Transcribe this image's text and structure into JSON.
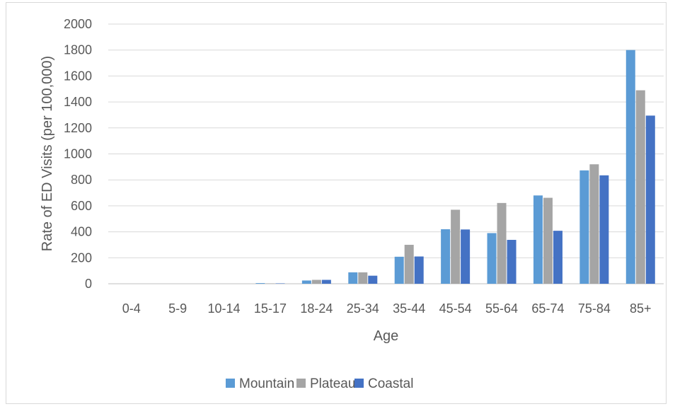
{
  "chart_data": {
    "type": "bar",
    "title": "",
    "xlabel": "Age",
    "ylabel": "Rate of ED Visits (per 100,000)",
    "ylim": [
      0,
      2000
    ],
    "yticks": [
      "0",
      "200",
      "400",
      "600",
      "800",
      "1000",
      "1200",
      "1400",
      "1600",
      "1800",
      "2000"
    ],
    "grid": "horizontal",
    "legend_position": "bottom",
    "categories": [
      "0-4",
      "5-9",
      "10-14",
      "15-17",
      "18-24",
      "25-34",
      "35-44",
      "45-54",
      "55-64",
      "65-74",
      "75-84",
      "85+"
    ],
    "series": [
      {
        "name": "Mountain",
        "color": "#5b9bd5",
        "values": [
          0,
          0,
          0,
          5,
          25,
          88,
          208,
          420,
          390,
          680,
          873,
          1800
        ]
      },
      {
        "name": "Plateau",
        "color": "#a5a5a5",
        "values": [
          0,
          0,
          0,
          3,
          30,
          88,
          300,
          570,
          622,
          662,
          920,
          1490
        ]
      },
      {
        "name": "Coastal",
        "color": "#4472c4",
        "values": [
          0,
          0,
          0,
          3,
          30,
          62,
          210,
          418,
          338,
          408,
          835,
          1295
        ]
      }
    ]
  }
}
